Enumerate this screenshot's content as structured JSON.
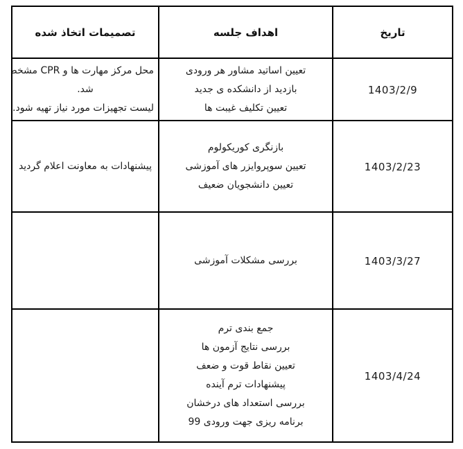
{
  "page": {
    "background": "#ffffff",
    "text_color": "#1a1a1a",
    "border_color": "#000000"
  },
  "table": {
    "direction": "rtl",
    "columns": [
      {
        "id": "date",
        "label": "تاریخ"
      },
      {
        "id": "objectives",
        "label": "اهداف جلسه"
      },
      {
        "id": "decisions",
        "label": "تصمیمات اتخاذ شده"
      }
    ],
    "rows": [
      {
        "date": "1403/2/9",
        "objectives": [
          "تعیین اساتید مشاور هر ورودی",
          "بازدید از دانشکده ی جدید",
          "تعیین تکلیف غیبت ها"
        ],
        "decisions": [
          "محل مرکز مهارت ها و CPR مشخص",
          "شد.",
          "لیست تجهیزات مورد نیاز تهیه شود."
        ]
      },
      {
        "date": "1403/2/23",
        "objectives": [
          "بازنگری کوریکولوم",
          "تعیین سوپروایزر های آموزشی",
          "تعیین دانشجویان ضعیف"
        ],
        "decisions": [
          "پیشنهادات به معاونت اعلام گردید"
        ]
      },
      {
        "date": "1403/3/27",
        "objectives": [
          "بررسی مشکلات آموزشی"
        ],
        "decisions": []
      },
      {
        "date": "1403/4/24",
        "objectives": [
          "جمع بندی ترم",
          "بررسی نتایج آزمون ها",
          "تعیین نقاط قوت و ضعف",
          "پیشنهادات ترم آینده",
          "بررسی استعداد های درخشان",
          "برنامه ریزی جهت ورودی 99"
        ],
        "decisions": []
      }
    ]
  }
}
